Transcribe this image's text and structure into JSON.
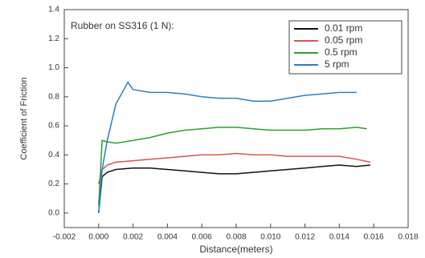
{
  "chart_data": {
    "type": "line",
    "annotation": "Rubber on SS316 (1 N):",
    "xlabel": "Distance(meters)",
    "ylabel": "Coefficient of Friction",
    "xlim": [
      -0.002,
      0.018
    ],
    "ylim": [
      -0.1,
      1.4
    ],
    "xticks": [
      {
        "value": -0.002,
        "label": "-0.002"
      },
      {
        "value": 0,
        "label": "0.000"
      },
      {
        "value": 0.002,
        "label": "0.002"
      },
      {
        "value": 0.004,
        "label": "0.004"
      },
      {
        "value": 0.006,
        "label": "0.006"
      },
      {
        "value": 0.008,
        "label": "0.008"
      },
      {
        "value": 0.01,
        "label": "0.010"
      },
      {
        "value": 0.012,
        "label": "0.012"
      },
      {
        "value": 0.014,
        "label": "0.014"
      },
      {
        "value": 0.016,
        "label": "0.016"
      },
      {
        "value": 0.018,
        "label": "0.018"
      }
    ],
    "yticks": [
      {
        "value": 0,
        "label": "0.0"
      },
      0.2,
      0.4,
      0.6,
      0.8,
      {
        "value": 1,
        "label": "1.0"
      },
      1.2,
      1.4
    ],
    "legend": "upper right",
    "series": [
      {
        "name": "0.01 rpm",
        "color": "#111111",
        "x": [
          0,
          0.0002,
          0.0005,
          0.001,
          0.002,
          0.003,
          0.004,
          0.005,
          0.006,
          0.007,
          0.008,
          0.009,
          0.01,
          0.011,
          0.012,
          0.013,
          0.014,
          0.015,
          0.0158
        ],
        "values": [
          0.0,
          0.25,
          0.28,
          0.3,
          0.31,
          0.31,
          0.3,
          0.29,
          0.28,
          0.27,
          0.27,
          0.28,
          0.29,
          0.3,
          0.31,
          0.32,
          0.33,
          0.32,
          0.33
        ]
      },
      {
        "name": "0.05 rpm",
        "color": "#d9534f",
        "x": [
          0,
          0.0002,
          0.0005,
          0.001,
          0.002,
          0.003,
          0.004,
          0.005,
          0.006,
          0.007,
          0.008,
          0.009,
          0.01,
          0.011,
          0.012,
          0.013,
          0.014,
          0.015,
          0.0158
        ],
        "values": [
          0.2,
          0.3,
          0.33,
          0.35,
          0.36,
          0.37,
          0.38,
          0.39,
          0.4,
          0.4,
          0.41,
          0.4,
          0.4,
          0.39,
          0.39,
          0.39,
          0.39,
          0.37,
          0.35
        ]
      },
      {
        "name": "0.5 rpm",
        "color": "#2ca02c",
        "x": [
          0,
          0.0002,
          0.0005,
          0.001,
          0.002,
          0.003,
          0.004,
          0.005,
          0.006,
          0.007,
          0.008,
          0.009,
          0.01,
          0.011,
          0.012,
          0.013,
          0.014,
          0.015,
          0.0156
        ],
        "values": [
          0.05,
          0.5,
          0.49,
          0.48,
          0.5,
          0.52,
          0.55,
          0.57,
          0.58,
          0.59,
          0.59,
          0.58,
          0.57,
          0.57,
          0.57,
          0.58,
          0.58,
          0.59,
          0.58
        ]
      },
      {
        "name": "5 rpm",
        "color": "#2a7fc0",
        "x": [
          0,
          0.0002,
          0.0005,
          0.001,
          0.0017,
          0.002,
          0.003,
          0.004,
          0.005,
          0.006,
          0.007,
          0.008,
          0.009,
          0.01,
          0.011,
          0.012,
          0.013,
          0.014,
          0.015
        ],
        "values": [
          0.0,
          0.3,
          0.5,
          0.75,
          0.9,
          0.85,
          0.83,
          0.83,
          0.82,
          0.8,
          0.79,
          0.79,
          0.77,
          0.77,
          0.79,
          0.81,
          0.82,
          0.83,
          0.83
        ]
      }
    ]
  }
}
